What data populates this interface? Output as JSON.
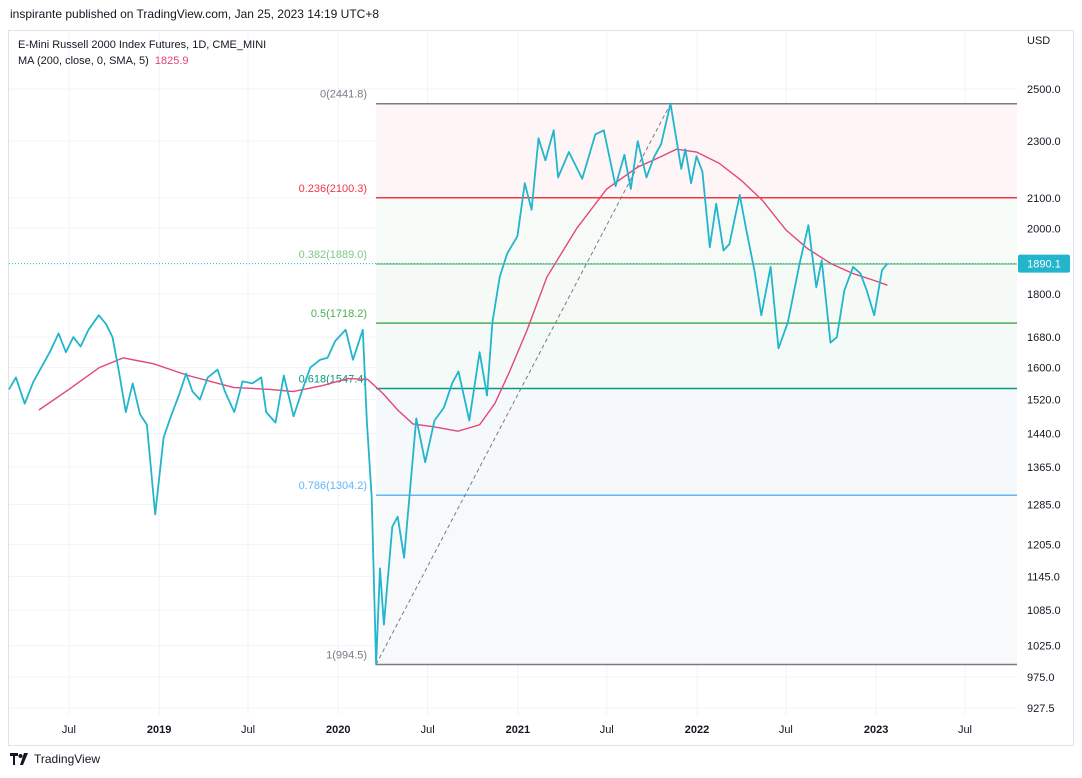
{
  "header": {
    "published_note": "inspirante published on TradingView.com, Jan 25, 2023 14:19 UTC+8"
  },
  "legend": {
    "symbol_line": "E-Mini Russell 2000 Index Futures, 1D, CME_MINI",
    "ma_line": "MA (200, close, 0, SMA, 5)",
    "ma_value": "1825.9"
  },
  "footer": {
    "brand": "TradingView",
    "logo_icon": "tradingview-logo-icon"
  },
  "colors": {
    "price": "#22b5cc",
    "ma": "#e3467c",
    "fib_0": "#787b86",
    "fib_236": "#f23645",
    "fib_382": "#81c784",
    "fib_5": "#4caf50",
    "fib_618": "#089981",
    "fib_786": "#64b5f6",
    "fib_1": "#787b86",
    "last_price_bg": "#22b5cc"
  },
  "chart_data": {
    "type": "line",
    "title": "E-Mini Russell 2000 Index Futures, 1D, CME_MINI",
    "y_scale": "log",
    "ylim": [
      900,
      2600
    ],
    "y_axis_unit": "USD",
    "y_ticks": [
      "2500.0",
      "2300.0",
      "2100.0",
      "2000.0",
      "1800.0",
      "1680.0",
      "1600.0",
      "1520.0",
      "1440.0",
      "1365.0",
      "1285.0",
      "1205.0",
      "1145.0",
      "1085.0",
      "1025.0",
      "975.0",
      "927.5"
    ],
    "y_tick_values": [
      2500,
      2300,
      2100,
      2000,
      1800,
      1680,
      1600,
      1520,
      1440,
      1365,
      1285,
      1205,
      1145,
      1085,
      1025,
      975,
      927.5
    ],
    "x_ticks": [
      {
        "label": "Jul",
        "date": "2018-07-01",
        "bold": false
      },
      {
        "label": "2019",
        "date": "2019-01-01",
        "bold": true
      },
      {
        "label": "Jul",
        "date": "2019-07-01",
        "bold": false
      },
      {
        "label": "2020",
        "date": "2020-01-01",
        "bold": true
      },
      {
        "label": "Jul",
        "date": "2020-07-01",
        "bold": false
      },
      {
        "label": "2021",
        "date": "2021-01-01",
        "bold": true
      },
      {
        "label": "Jul",
        "date": "2021-07-01",
        "bold": false
      },
      {
        "label": "2022",
        "date": "2022-01-01",
        "bold": true
      },
      {
        "label": "Jul",
        "date": "2022-07-01",
        "bold": false
      },
      {
        "label": "2023",
        "date": "2023-01-01",
        "bold": true
      },
      {
        "label": "Jul",
        "date": "2023-07-01",
        "bold": false
      }
    ],
    "x_range": [
      "2018-03-01",
      "2023-10-15"
    ],
    "last_price": "1890.1",
    "fib_retracement": {
      "start": {
        "date": "2020-03-18",
        "value": 994.5
      },
      "end": {
        "date": "2021-11-08",
        "value": 2441.8
      },
      "end_date_extent": "2023-10-15",
      "levels": [
        {
          "label": "0(2441.8)",
          "ratio": "0",
          "value": 2441.8
        },
        {
          "label": "0.236(2100.3)",
          "ratio": "0.236",
          "value": 2100.3
        },
        {
          "label": "0.382(1889.0)",
          "ratio": "0.382",
          "value": 1889.0
        },
        {
          "label": "0.5(1718.2)",
          "ratio": "0.5",
          "value": 1718.2
        },
        {
          "label": "0.618(1547.4)",
          "ratio": "0.618",
          "value": 1547.4
        },
        {
          "label": "0.786(1304.2)",
          "ratio": "0.786",
          "value": 1304.2
        },
        {
          "label": "1(994.5)",
          "ratio": "1",
          "value": 994.5
        }
      ]
    },
    "series": [
      {
        "name": "E-Mini Russell 2000 Index Futures",
        "points": [
          [
            "2018-03-01",
            1545
          ],
          [
            "2018-03-15",
            1575
          ],
          [
            "2018-04-02",
            1510
          ],
          [
            "2018-04-20",
            1565
          ],
          [
            "2018-05-10",
            1610
          ],
          [
            "2018-05-25",
            1645
          ],
          [
            "2018-06-10",
            1690
          ],
          [
            "2018-06-25",
            1640
          ],
          [
            "2018-07-10",
            1680
          ],
          [
            "2018-07-25",
            1655
          ],
          [
            "2018-08-10",
            1700
          ],
          [
            "2018-08-31",
            1740
          ],
          [
            "2018-09-15",
            1715
          ],
          [
            "2018-09-28",
            1680
          ],
          [
            "2018-10-11",
            1590
          ],
          [
            "2018-10-25",
            1490
          ],
          [
            "2018-11-08",
            1560
          ],
          [
            "2018-11-23",
            1485
          ],
          [
            "2018-12-07",
            1460
          ],
          [
            "2018-12-24",
            1265
          ],
          [
            "2019-01-10",
            1430
          ],
          [
            "2019-01-25",
            1480
          ],
          [
            "2019-02-10",
            1530
          ],
          [
            "2019-02-25",
            1585
          ],
          [
            "2019-03-10",
            1540
          ],
          [
            "2019-03-25",
            1520
          ],
          [
            "2019-04-10",
            1575
          ],
          [
            "2019-04-30",
            1595
          ],
          [
            "2019-05-15",
            1540
          ],
          [
            "2019-06-03",
            1490
          ],
          [
            "2019-06-20",
            1565
          ],
          [
            "2019-07-10",
            1560
          ],
          [
            "2019-07-28",
            1575
          ],
          [
            "2019-08-07",
            1490
          ],
          [
            "2019-08-26",
            1465
          ],
          [
            "2019-09-12",
            1580
          ],
          [
            "2019-10-02",
            1480
          ],
          [
            "2019-10-20",
            1545
          ],
          [
            "2019-11-05",
            1600
          ],
          [
            "2019-11-25",
            1620
          ],
          [
            "2019-12-10",
            1625
          ],
          [
            "2019-12-26",
            1670
          ],
          [
            "2020-01-16",
            1700
          ],
          [
            "2020-01-31",
            1620
          ],
          [
            "2020-02-20",
            1700
          ],
          [
            "2020-02-28",
            1470
          ],
          [
            "2020-03-09",
            1300
          ],
          [
            "2020-03-18",
            994.5
          ],
          [
            "2020-03-26",
            1160
          ],
          [
            "2020-04-03",
            1060
          ],
          [
            "2020-04-20",
            1240
          ],
          [
            "2020-05-01",
            1260
          ],
          [
            "2020-05-14",
            1180
          ],
          [
            "2020-06-08",
            1475
          ],
          [
            "2020-06-26",
            1375
          ],
          [
            "2020-07-15",
            1470
          ],
          [
            "2020-08-03",
            1500
          ],
          [
            "2020-08-20",
            1560
          ],
          [
            "2020-09-02",
            1590
          ],
          [
            "2020-09-24",
            1470
          ],
          [
            "2020-10-15",
            1640
          ],
          [
            "2020-10-30",
            1530
          ],
          [
            "2020-11-10",
            1720
          ],
          [
            "2020-11-25",
            1850
          ],
          [
            "2020-12-10",
            1920
          ],
          [
            "2020-12-31",
            1975
          ],
          [
            "2021-01-15",
            2150
          ],
          [
            "2021-01-29",
            2060
          ],
          [
            "2021-02-12",
            2310
          ],
          [
            "2021-02-26",
            2230
          ],
          [
            "2021-03-15",
            2340
          ],
          [
            "2021-03-24",
            2170
          ],
          [
            "2021-04-15",
            2260
          ],
          [
            "2021-05-12",
            2165
          ],
          [
            "2021-06-08",
            2325
          ],
          [
            "2021-06-25",
            2340
          ],
          [
            "2021-07-19",
            2140
          ],
          [
            "2021-08-06",
            2250
          ],
          [
            "2021-08-19",
            2130
          ],
          [
            "2021-09-02",
            2300
          ],
          [
            "2021-09-20",
            2170
          ],
          [
            "2021-10-05",
            2240
          ],
          [
            "2021-10-20",
            2290
          ],
          [
            "2021-11-08",
            2441.8
          ],
          [
            "2021-11-30",
            2200
          ],
          [
            "2021-12-08",
            2270
          ],
          [
            "2021-12-20",
            2150
          ],
          [
            "2021-12-31",
            2245
          ],
          [
            "2022-01-12",
            2190
          ],
          [
            "2022-01-27",
            1940
          ],
          [
            "2022-02-09",
            2080
          ],
          [
            "2022-02-24",
            1930
          ],
          [
            "2022-03-08",
            1950
          ],
          [
            "2022-03-29",
            2110
          ],
          [
            "2022-04-12",
            1990
          ],
          [
            "2022-04-28",
            1870
          ],
          [
            "2022-05-12",
            1740
          ],
          [
            "2022-05-31",
            1880
          ],
          [
            "2022-06-16",
            1650
          ],
          [
            "2022-07-05",
            1720
          ],
          [
            "2022-07-29",
            1890
          ],
          [
            "2022-08-16",
            2010
          ],
          [
            "2022-09-01",
            1820
          ],
          [
            "2022-09-12",
            1900
          ],
          [
            "2022-09-30",
            1665
          ],
          [
            "2022-10-13",
            1680
          ],
          [
            "2022-10-28",
            1810
          ],
          [
            "2022-11-15",
            1880
          ],
          [
            "2022-11-30",
            1860
          ],
          [
            "2022-12-13",
            1810
          ],
          [
            "2022-12-28",
            1740
          ],
          [
            "2023-01-13",
            1870
          ],
          [
            "2023-01-24",
            1890.1
          ]
        ]
      },
      {
        "name": "MA (200, close, 0, SMA, 5)",
        "points": [
          [
            "2018-05-01",
            1495
          ],
          [
            "2018-07-01",
            1545
          ],
          [
            "2018-09-01",
            1600
          ],
          [
            "2018-10-20",
            1625
          ],
          [
            "2018-12-20",
            1610
          ],
          [
            "2019-03-01",
            1580
          ],
          [
            "2019-06-01",
            1550
          ],
          [
            "2019-08-15",
            1545
          ],
          [
            "2019-10-01",
            1540
          ],
          [
            "2019-12-01",
            1555
          ],
          [
            "2020-01-20",
            1572
          ],
          [
            "2020-03-01",
            1570
          ],
          [
            "2020-04-01",
            1535
          ],
          [
            "2020-05-01",
            1495
          ],
          [
            "2020-06-01",
            1462
          ],
          [
            "2020-07-15",
            1455
          ],
          [
            "2020-09-01",
            1445
          ],
          [
            "2020-10-15",
            1460
          ],
          [
            "2020-11-15",
            1510
          ],
          [
            "2020-12-15",
            1590
          ],
          [
            "2021-01-20",
            1700
          ],
          [
            "2021-03-01",
            1850
          ],
          [
            "2021-05-01",
            2000
          ],
          [
            "2021-07-01",
            2130
          ],
          [
            "2021-09-01",
            2205
          ],
          [
            "2021-10-15",
            2240
          ],
          [
            "2021-11-20",
            2270
          ],
          [
            "2021-12-31",
            2260
          ],
          [
            "2022-02-15",
            2220
          ],
          [
            "2022-04-01",
            2160
          ],
          [
            "2022-05-15",
            2090
          ],
          [
            "2022-07-01",
            1995
          ],
          [
            "2022-08-15",
            1935
          ],
          [
            "2022-10-01",
            1890
          ],
          [
            "2022-11-15",
            1860
          ],
          [
            "2022-12-31",
            1838
          ],
          [
            "2023-01-24",
            1825.9
          ]
        ]
      }
    ]
  }
}
